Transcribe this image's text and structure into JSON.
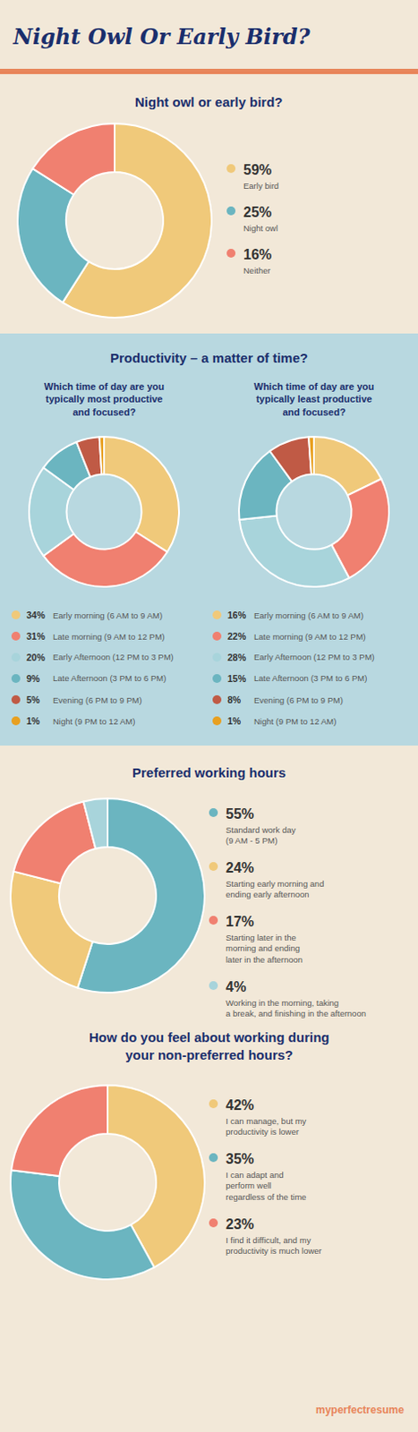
{
  "title": "Night Owl Or Early Bird?",
  "annotations": [
    "myperfectresume"
  ],
  "chart_data": [
    {
      "type": "pie",
      "title": "Night owl or early bird?",
      "categories": [
        "Early bird",
        "Night owl",
        "Neither"
      ],
      "values": [
        59,
        25,
        16
      ],
      "value_labels": [
        "59%",
        "25%",
        "16%"
      ],
      "colors": [
        "#f0c97a",
        "#6bb5c0",
        "#f08070"
      ],
      "data_labels": true
    },
    {
      "type": "pie",
      "title": "Productivity – a matter of time?",
      "subtitle": "Which time of day are you\ntypically most productive\nand focused?",
      "categories": [
        "Early morning (6 AM to 9 AM)",
        "Late morning (9 AM to 12 PM)",
        "Early Afternoon (12 PM to 3 PM)",
        "Late Afternoon (3 PM to 6 PM)",
        "Evening (6 PM to 9 PM)",
        "Night (9 PM to 12 AM)"
      ],
      "values": [
        34,
        31,
        20,
        9,
        5,
        1
      ],
      "value_labels": [
        "34%",
        "31%",
        "20%",
        "9%",
        "5%",
        "1%"
      ],
      "colors": [
        "#f0c97a",
        "#f08070",
        "#a8d4db",
        "#6bb5c0",
        "#c05a45",
        "#e8a020"
      ],
      "data_labels": true
    },
    {
      "type": "pie",
      "subtitle": "Which time of day are you\ntypically least productive\nand focused?",
      "categories": [
        "Early morning (6 AM to 9 AM)",
        "Late morning (9 AM to 12 PM)",
        "Early Afternoon (12 PM to 3 PM)",
        "Late Afternoon (3 PM to 6 PM)",
        "Evening (6 PM to 9 PM)",
        "Night (9 PM to 12 AM)"
      ],
      "values": [
        16,
        22,
        28,
        15,
        8,
        1
      ],
      "value_labels": [
        "16%",
        "22%",
        "28%",
        "15%",
        "8%",
        "1%"
      ],
      "colors": [
        "#f0c97a",
        "#f08070",
        "#a8d4db",
        "#6bb5c0",
        "#c05a45",
        "#e8a020"
      ],
      "data_labels": true
    },
    {
      "type": "pie",
      "title": "Preferred working hours",
      "categories": [
        "Standard work day\n(9 AM - 5 PM)",
        "Starting early morning and\nending early afternoon",
        "Starting later in the\nmorning and ending\nlater in the afternoon",
        "Working in the morning, taking\na break, and finishing in the afternoon"
      ],
      "values": [
        55,
        24,
        17,
        4
      ],
      "value_labels": [
        "55%",
        "24%",
        "17%",
        "4%"
      ],
      "colors": [
        "#6bb5c0",
        "#f0c97a",
        "#f08070",
        "#a8d4db"
      ],
      "data_labels": true
    },
    {
      "type": "pie",
      "title": "How do you feel about working during\nyour non-preferred hours?",
      "categories": [
        "I can manage, but my\nproductivity is lower",
        "I can adapt and\nperform well\nregardless of the time",
        "I find it difficult, and my\nproductivity is much lower"
      ],
      "values": [
        42,
        35,
        23
      ],
      "value_labels": [
        "42%",
        "35%",
        "23%"
      ],
      "colors": [
        "#f0c97a",
        "#6bb5c0",
        "#f08070"
      ],
      "data_labels": true
    }
  ]
}
